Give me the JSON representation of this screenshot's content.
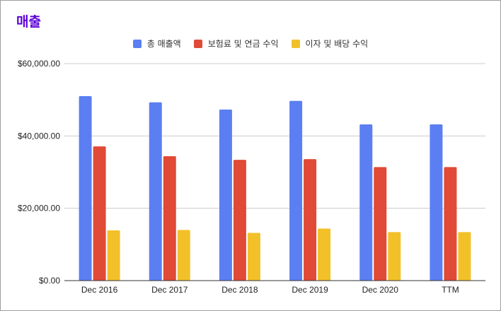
{
  "chart_data": {
    "type": "bar",
    "title": "매출",
    "xlabel": "",
    "ylabel": "",
    "categories": [
      "Dec 2016",
      "Dec 2017",
      "Dec 2018",
      "Dec 2019",
      "Dec 2020",
      "TTM"
    ],
    "series": [
      {
        "name": "총 매출액",
        "color": "#5b7ff2",
        "values": [
          51000,
          49300,
          47300,
          49700,
          43200,
          43200
        ]
      },
      {
        "name": "보험료 및 연금 수익",
        "color": "#e04a36",
        "values": [
          37100,
          34400,
          33400,
          33600,
          31400,
          31400
        ]
      },
      {
        "name": "이자 및 배당 수익",
        "color": "#f2c12a",
        "values": [
          13900,
          14000,
          13200,
          14400,
          13400,
          13400
        ]
      }
    ],
    "ylim": [
      0,
      60000
    ],
    "yticks": [
      "$0.00",
      "$20,000.00",
      "$40,000.00",
      "$60,000.00"
    ],
    "ytick_values": [
      0,
      20000,
      40000,
      60000
    ],
    "grid": true,
    "legend_position": "top"
  }
}
